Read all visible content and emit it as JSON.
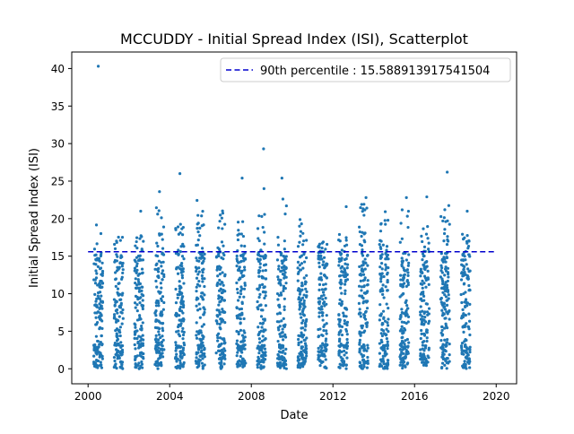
{
  "chart_data": {
    "type": "scatter",
    "title": "MCCUDDY - Initial Spread Index (ISI), Scatterplot",
    "xlabel": "Date",
    "ylabel": "Initial Spread Index (ISI)",
    "xlim": [
      1999.2,
      2021.0
    ],
    "ylim": [
      -2.0,
      42.2
    ],
    "x_ticks": [
      2000,
      2004,
      2008,
      2012,
      2016,
      2020
    ],
    "y_ticks": [
      0,
      5,
      10,
      15,
      20,
      25,
      30,
      35,
      40
    ],
    "grid": false,
    "legend_position": "top-right",
    "point_color": "#1f77b4",
    "reference_line": {
      "label": "90th percentile : 15.588913917541504",
      "value": 15.588913917541504,
      "color": "#0000cd",
      "style": "dashed"
    },
    "season_note": "Daily observations clustered in fire seasons, one band per year 2000-2018",
    "series": [
      {
        "seasons": [
          {
            "year": 2000,
            "start": 2000.28,
            "end": 2000.72,
            "max": 20.6,
            "peaks": [
              {
                "x": 2000.5,
                "y": 40.3
              }
            ]
          },
          {
            "year": 2001,
            "start": 2001.28,
            "end": 2001.72,
            "max": 17.6,
            "peaks": []
          },
          {
            "year": 2002,
            "start": 2002.28,
            "end": 2002.72,
            "max": 18.0,
            "peaks": [
              {
                "x": 2002.58,
                "y": 21.0
              }
            ]
          },
          {
            "year": 2003,
            "start": 2003.28,
            "end": 2003.72,
            "max": 22.5,
            "peaks": [
              {
                "x": 2003.5,
                "y": 23.6
              }
            ]
          },
          {
            "year": 2004,
            "start": 2004.28,
            "end": 2004.72,
            "max": 19.6,
            "peaks": [
              {
                "x": 2004.5,
                "y": 26.0
              }
            ]
          },
          {
            "year": 2005,
            "start": 2005.28,
            "end": 2005.72,
            "max": 22.5,
            "peaks": []
          },
          {
            "year": 2006,
            "start": 2006.28,
            "end": 2006.72,
            "max": 21.2,
            "peaks": []
          },
          {
            "year": 2007,
            "start": 2007.28,
            "end": 2007.72,
            "max": 20.0,
            "peaks": [
              {
                "x": 2007.55,
                "y": 25.4
              }
            ]
          },
          {
            "year": 2008,
            "start": 2008.28,
            "end": 2008.72,
            "max": 21.0,
            "peaks": [
              {
                "x": 2008.6,
                "y": 29.3
              },
              {
                "x": 2008.62,
                "y": 24.0
              }
            ]
          },
          {
            "year": 2009,
            "start": 2009.28,
            "end": 2009.72,
            "max": 23.2,
            "peaks": [
              {
                "x": 2009.5,
                "y": 25.4
              }
            ]
          },
          {
            "year": 2010,
            "start": 2010.28,
            "end": 2010.72,
            "max": 20.5,
            "peaks": []
          },
          {
            "year": 2011,
            "start": 2011.28,
            "end": 2011.72,
            "max": 17.0,
            "peaks": []
          },
          {
            "year": 2012,
            "start": 2012.28,
            "end": 2012.72,
            "max": 18.0,
            "peaks": [
              {
                "x": 2012.65,
                "y": 21.6
              }
            ]
          },
          {
            "year": 2013,
            "start": 2013.28,
            "end": 2013.72,
            "max": 22.0,
            "peaks": [
              {
                "x": 2013.62,
                "y": 22.8
              }
            ]
          },
          {
            "year": 2014,
            "start": 2014.28,
            "end": 2014.72,
            "max": 21.0,
            "peaks": []
          },
          {
            "year": 2015,
            "start": 2015.28,
            "end": 2015.72,
            "max": 22.0,
            "peaks": [
              {
                "x": 2015.6,
                "y": 22.8
              }
            ]
          },
          {
            "year": 2016,
            "start": 2016.28,
            "end": 2016.72,
            "max": 19.0,
            "peaks": [
              {
                "x": 2016.6,
                "y": 22.9
              }
            ]
          },
          {
            "year": 2017,
            "start": 2017.28,
            "end": 2017.72,
            "max": 22.8,
            "peaks": [
              {
                "x": 2017.6,
                "y": 26.2
              }
            ]
          },
          {
            "year": 2018,
            "start": 2018.28,
            "end": 2018.72,
            "max": 18.0,
            "peaks": [
              {
                "x": 2018.58,
                "y": 21.0
              }
            ]
          }
        ]
      }
    ]
  }
}
